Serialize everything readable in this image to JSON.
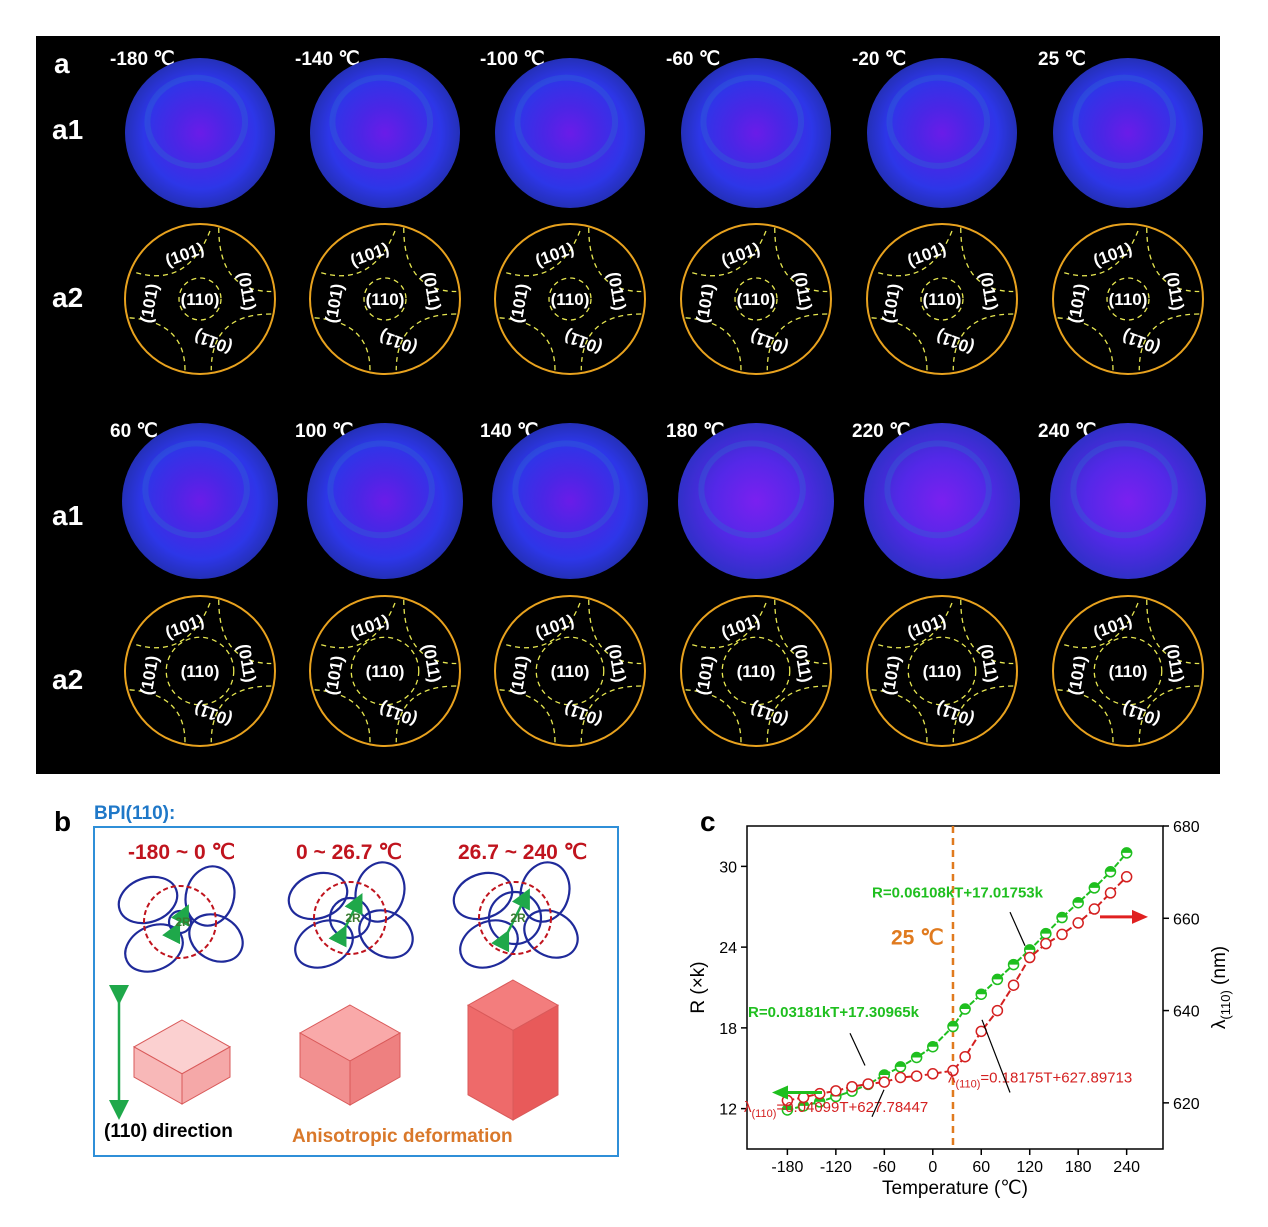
{
  "panel_a": {
    "label": "a",
    "row_labels": {
      "a1": "a1",
      "a2": "a2"
    },
    "top_temps": [
      "-180 ℃",
      "-140 ℃",
      "-100 ℃",
      "-60 ℃",
      "-20 ℃",
      "25 ℃"
    ],
    "bottom_temps": [
      "60 ℃",
      "100 ℃",
      "140 ℃",
      "180 ℃",
      "220 ℃",
      "240 ℃"
    ],
    "facets": {
      "top": "(101)",
      "right": "(011)",
      "left": "(101)",
      "bottom": "(011)",
      "center": "(110)"
    },
    "colors": {
      "background": "#000000",
      "circle": "#e8a21e",
      "dashed": "#e6e650",
      "sphere": "#2a2ee0"
    }
  },
  "panel_b": {
    "label": "b",
    "title": "BPI(110):",
    "ranges": [
      "-180 ~ 0 ℃",
      "0 ~ 26.7 ℃",
      "26.7 ~ 240 ℃"
    ],
    "radius_label": "2R",
    "direction_label": "(110) direction",
    "deformation_label": "Anisotropic deformation",
    "colors": {
      "title": "#1f78c8",
      "range": "#c0141e",
      "deformation": "#d9782a",
      "cube": "#f07d7d"
    }
  },
  "panel_c": {
    "label": "c",
    "annotation_25": "25 ℃",
    "eq_green_low": "R=0.03181kT+17.30965k",
    "eq_green_high": "R=0.06108kT+17.01753k",
    "eq_red_low_prefix": "λ",
    "eq_red_low_sub": "(110)",
    "eq_red_low_rest": "=0.04099T+627.78447",
    "eq_red_high_prefix": "λ",
    "eq_red_high_sub": "(110)",
    "eq_red_high_rest": "=0.18175T+627.89713"
  },
  "chart_data": {
    "type": "line",
    "xlabel": "Temperature (℃)",
    "ylabel_left": "R (×k)",
    "ylabel_right_prefix": "λ",
    "ylabel_right_sub": "(110)",
    "ylabel_right_rest": " (nm)",
    "x_ticks": [
      -180,
      -120,
      -60,
      0,
      60,
      120,
      180,
      240
    ],
    "y_left_ticks": [
      12,
      18,
      24,
      30
    ],
    "y_right_ticks": [
      620,
      640,
      660,
      680
    ],
    "xlim": [
      -230,
      285
    ],
    "ylim_left": [
      9,
      33
    ],
    "ylim_right": [
      610,
      680
    ],
    "series": [
      {
        "name": "R",
        "axis": "left",
        "color": "#1fbf1f",
        "x": [
          -180,
          -160,
          -140,
          -120,
          -100,
          -80,
          -60,
          -40,
          -20,
          0,
          25,
          40,
          60,
          80,
          100,
          120,
          140,
          160,
          180,
          200,
          220,
          240
        ],
        "y": [
          11.9,
          12.2,
          12.5,
          12.9,
          13.3,
          13.8,
          14.5,
          15.1,
          15.8,
          16.6,
          18.1,
          19.4,
          20.5,
          21.6,
          22.7,
          23.8,
          25.0,
          26.2,
          27.3,
          28.4,
          29.6,
          31.0
        ]
      },
      {
        "name": "λ(110)",
        "axis": "right",
        "color": "#d42020",
        "x": [
          -180,
          -160,
          -140,
          -120,
          -100,
          -80,
          -60,
          -40,
          -20,
          0,
          25,
          40,
          60,
          80,
          100,
          120,
          140,
          160,
          180,
          200,
          220,
          240
        ],
        "y": [
          620.5,
          621.2,
          622.0,
          622.6,
          623.5,
          624.1,
          624.5,
          625.5,
          625.8,
          626.3,
          627.0,
          630.0,
          635.5,
          640.0,
          645.5,
          651.5,
          654.5,
          656.5,
          659.0,
          662.0,
          665.5,
          669.0
        ]
      }
    ]
  }
}
